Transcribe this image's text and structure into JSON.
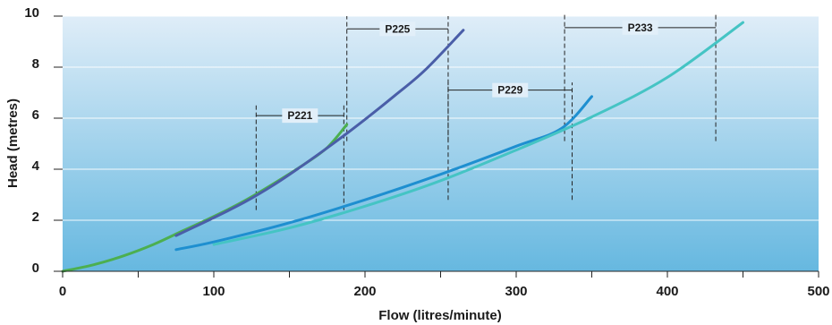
{
  "chart_data": {
    "type": "line",
    "xlabel": "Flow (litres/minute)",
    "ylabel": "Head (metres)",
    "xlim": [
      0,
      500
    ],
    "ylim": [
      0,
      10
    ],
    "x_ticks": [
      0,
      100,
      200,
      300,
      400,
      500
    ],
    "y_ticks": [
      0,
      2,
      4,
      6,
      8,
      10
    ],
    "grid": "horizontal",
    "background": "vertical gradient, light blue top to darker blue bottom",
    "series": [
      {
        "name": "P221",
        "color": "#4caf50",
        "points": [
          [
            0,
            0
          ],
          [
            20,
            0.25
          ],
          [
            40,
            0.6
          ],
          [
            60,
            1.05
          ],
          [
            80,
            1.6
          ],
          [
            100,
            2.15
          ],
          [
            120,
            2.75
          ],
          [
            140,
            3.45
          ],
          [
            160,
            4.2
          ],
          [
            175,
            4.85
          ],
          [
            188,
            5.75
          ]
        ]
      },
      {
        "name": "P225",
        "color": "#4a5ea8",
        "points": [
          [
            75,
            1.4
          ],
          [
            100,
            2.1
          ],
          [
            120,
            2.7
          ],
          [
            140,
            3.4
          ],
          [
            160,
            4.2
          ],
          [
            180,
            5.05
          ],
          [
            200,
            5.95
          ],
          [
            220,
            6.9
          ],
          [
            240,
            7.9
          ],
          [
            265,
            9.45
          ]
        ]
      },
      {
        "name": "P229",
        "color": "#1e8fd0",
        "points": [
          [
            75,
            0.85
          ],
          [
            100,
            1.15
          ],
          [
            150,
            1.9
          ],
          [
            200,
            2.8
          ],
          [
            250,
            3.8
          ],
          [
            300,
            4.9
          ],
          [
            330,
            5.6
          ],
          [
            350,
            6.85
          ]
        ]
      },
      {
        "name": "P233",
        "color": "#45c4c4",
        "points": [
          [
            100,
            1.05
          ],
          [
            150,
            1.7
          ],
          [
            200,
            2.55
          ],
          [
            250,
            3.55
          ],
          [
            300,
            4.75
          ],
          [
            350,
            6.05
          ],
          [
            400,
            7.6
          ],
          [
            450,
            9.75
          ]
        ]
      }
    ],
    "ranges": [
      {
        "label": "P221",
        "x_start": 128,
        "x_end": 186,
        "y_label": 6.1,
        "y_start": 2.4,
        "y_end": 6.5
      },
      {
        "label": "P225",
        "x_start": 188,
        "x_end": 255,
        "y_label": 9.5,
        "y_start": 5.1,
        "y_end": 10.0
      },
      {
        "label": "P229",
        "x_start": 255,
        "x_end": 337,
        "y_label": 7.1,
        "y_start": 2.8,
        "y_end": 7.4
      },
      {
        "label": "P233",
        "x_start": 332,
        "x_end": 432,
        "y_label": 9.55,
        "y_start": 5.1,
        "y_end": 10.1
      }
    ]
  }
}
